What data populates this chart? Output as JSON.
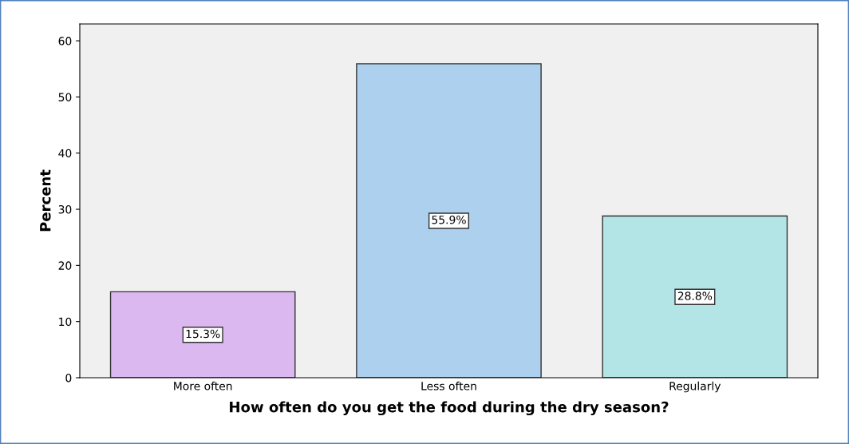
{
  "chart_data": {
    "type": "bar",
    "xlabel": "How often do you get the food during the dry season?",
    "ylabel": "Percent",
    "categories": [
      "More often",
      "Less often",
      "Regularly"
    ],
    "values": [
      15.3,
      55.9,
      28.8
    ],
    "colors": [
      "#dcb8f0",
      "#acd0ee",
      "#b3e5e6"
    ],
    "value_labels": [
      "15.3%",
      "55.9%",
      "28.8%"
    ],
    "ylim": [
      0,
      63
    ],
    "yticks": [
      0,
      10,
      20,
      30,
      40,
      50,
      60
    ],
    "grid": false
  }
}
